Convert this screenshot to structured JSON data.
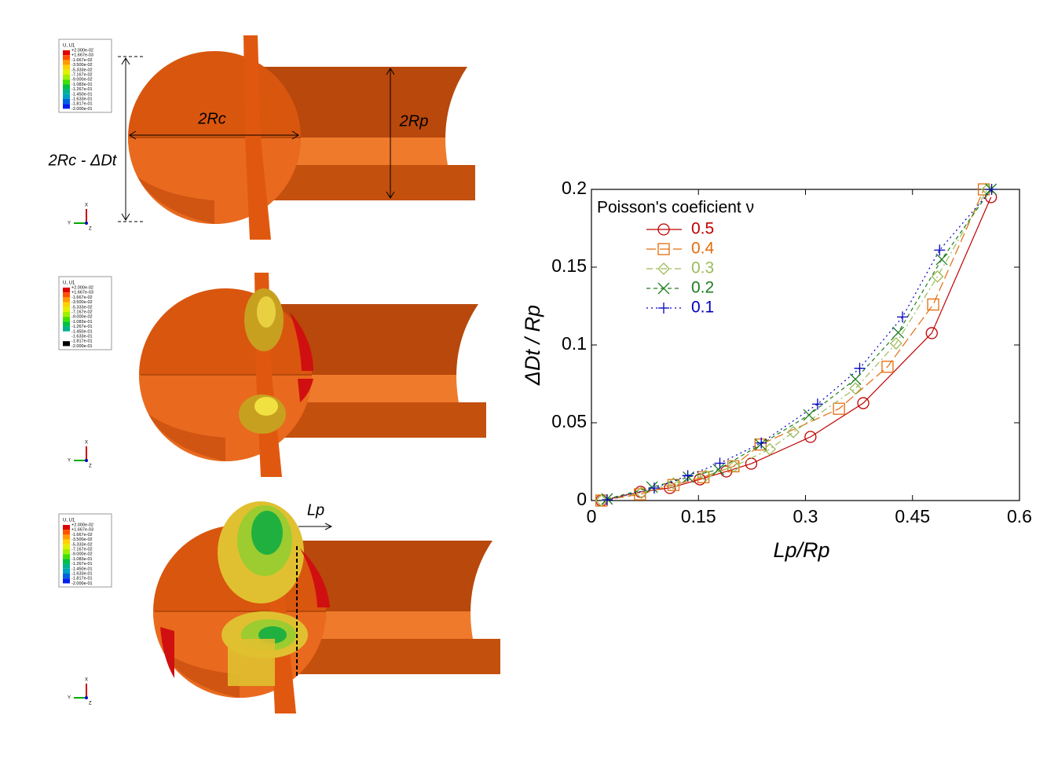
{
  "figure": {
    "contour_title": "U, U1",
    "contour_levels": [
      "+2.000e-02",
      "+1.667e-03",
      "-1.667e-02",
      "-3.500e-02",
      "-5.333e-02",
      "-7.167e-02",
      "-9.000e-02",
      "-1.083e-01",
      "-1.267e-01",
      "-1.450e-01",
      "-1.633e-01",
      "-1.817e-01",
      "-2.000e-01"
    ],
    "triad": [
      "X",
      "Y",
      "Z"
    ],
    "annotations": {
      "deformed": "2Rc - ΔDt",
      "diameter_c": "2Rc",
      "diameter_p": "2Rp",
      "length": "Lp"
    }
  },
  "chart_data": {
    "type": "line",
    "xlabel": "Lp/Rp",
    "ylabel": "ΔDt / Rp",
    "legend_title": "Poisson's coeficient ν",
    "legend_position": "upper left",
    "xlim": [
      0,
      0.6
    ],
    "xticks": [
      0,
      0.15,
      0.3,
      0.45,
      0.6
    ],
    "ylim": [
      0,
      0.2
    ],
    "yticks": [
      0,
      0.05,
      0.1,
      0.15,
      0.2
    ],
    "series": [
      {
        "name": "0.5",
        "color": "#c00000",
        "marker": "circle",
        "linestyle": "solid",
        "x": [
          0.014,
          0.069,
          0.11,
          0.152,
          0.189,
          0.224,
          0.307,
          0.381,
          0.477,
          0.56
        ],
        "values": [
          0,
          0.0056,
          0.0081,
          0.0136,
          0.0187,
          0.0237,
          0.0409,
          0.0626,
          0.1076,
          0.195
        ]
      },
      {
        "name": "0.4",
        "color": "#e36c0a",
        "marker": "square",
        "linestyle": "longdash",
        "x": [
          0.014,
          0.068,
          0.115,
          0.157,
          0.199,
          0.237,
          0.347,
          0.415,
          0.479,
          0.55
        ],
        "values": [
          0,
          0.004,
          0.01,
          0.015,
          0.022,
          0.036,
          0.059,
          0.086,
          0.126,
          0.2
        ]
      },
      {
        "name": "0.3",
        "color": "#9bbb59",
        "marker": "diamond",
        "linestyle": "dashdot",
        "x": [
          0.014,
          0.07,
          0.115,
          0.16,
          0.2,
          0.25,
          0.283,
          0.37,
          0.427,
          0.485,
          0.555
        ],
        "values": [
          0,
          0.005,
          0.011,
          0.016,
          0.022,
          0.033,
          0.044,
          0.072,
          0.101,
          0.144,
          0.2
        ]
      },
      {
        "name": "0.2",
        "color": "#1e7d1e",
        "marker": "x",
        "linestyle": "dash",
        "x": [
          0.022,
          0.085,
          0.136,
          0.178,
          0.237,
          0.305,
          0.37,
          0.43,
          0.491,
          0.56
        ],
        "values": [
          0.001,
          0.0086,
          0.015,
          0.02,
          0.036,
          0.055,
          0.078,
          0.108,
          0.155,
          0.2
        ]
      },
      {
        "name": "0.1",
        "color": "#0000c0",
        "marker": "plus",
        "linestyle": "dotted",
        "x": [
          0.022,
          0.088,
          0.135,
          0.18,
          0.238,
          0.317,
          0.376,
          0.436,
          0.488,
          0.561
        ],
        "values": [
          0.0005,
          0.008,
          0.016,
          0.024,
          0.037,
          0.062,
          0.085,
          0.118,
          0.161,
          0.2
        ]
      }
    ]
  }
}
